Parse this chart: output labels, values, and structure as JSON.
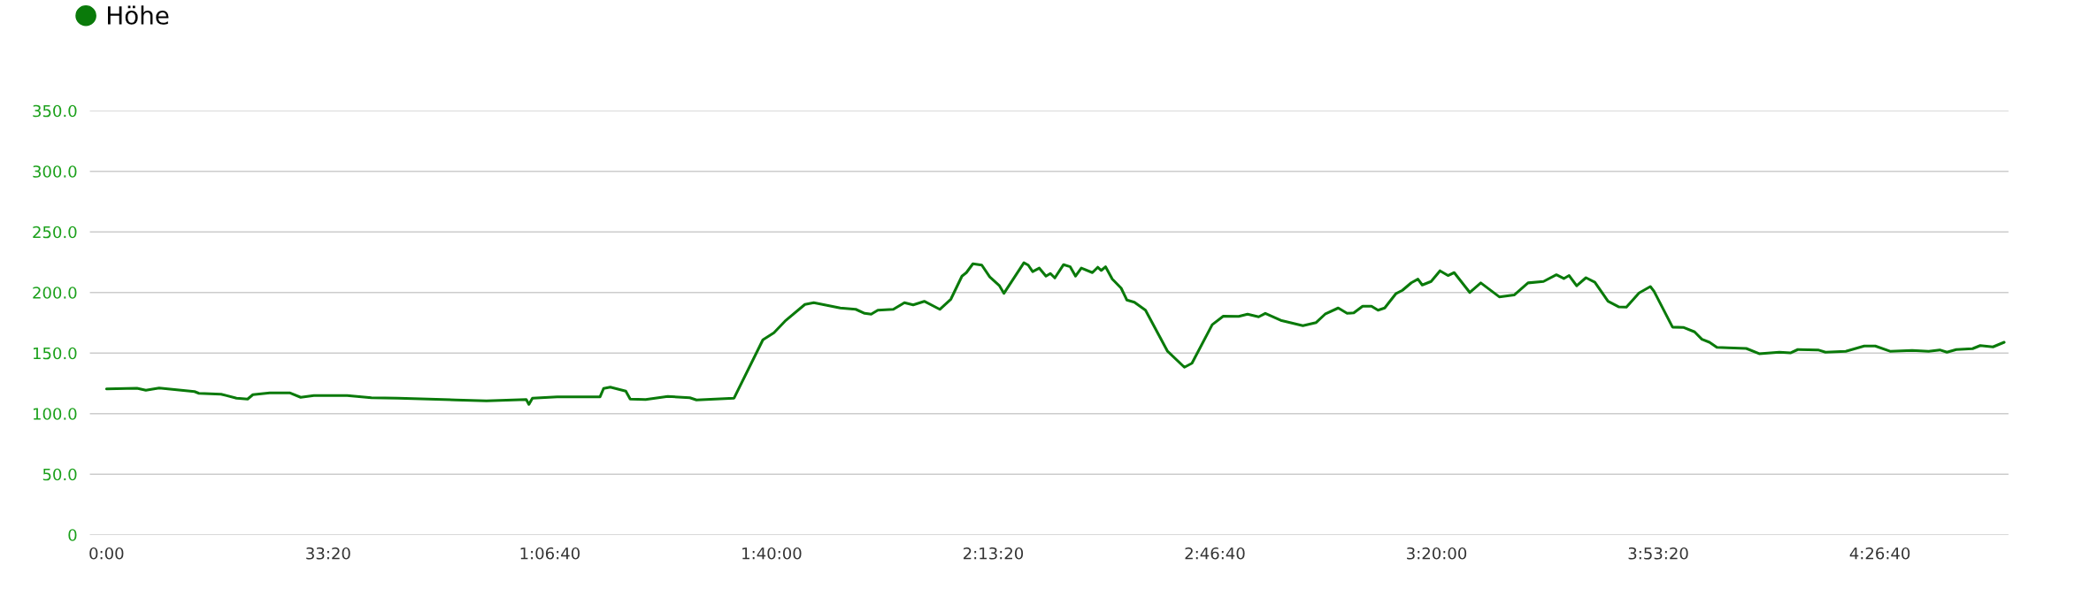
{
  "chart_data": {
    "type": "line",
    "legend": "top left",
    "grid": "y",
    "xlim": [
      -150,
      17160
    ],
    "ylim": [
      0,
      350
    ],
    "xticks": [
      {
        "value": 0,
        "label": "0:00"
      },
      {
        "value": 2000,
        "label": "33:20"
      },
      {
        "value": 4000,
        "label": "1:06:40"
      },
      {
        "value": 6000,
        "label": "1:40:00"
      },
      {
        "value": 8000,
        "label": "2:13:20"
      },
      {
        "value": 10000,
        "label": "2:46:40"
      },
      {
        "value": 12000,
        "label": "3:20:00"
      },
      {
        "value": 14000,
        "label": "3:53:20"
      },
      {
        "value": 16000,
        "label": "4:26:40"
      }
    ],
    "yticks": [
      0,
      {
        "value": 50,
        "label": "50.0"
      },
      {
        "value": 100,
        "label": "100.0"
      },
      {
        "value": 150,
        "label": "150.0"
      },
      {
        "value": 200,
        "label": "200.0"
      },
      {
        "value": 250,
        "label": "250.0"
      },
      {
        "value": 300,
        "label": "300.0"
      },
      {
        "value": 350,
        "label": "350.0"
      }
    ],
    "series": [
      {
        "name": "Höhe",
        "color": "#0a7a0a",
        "x": [
          0,
          275,
          355,
          475,
          794,
          834,
          1033,
          1173,
          1273,
          1321,
          1473,
          1652,
          1752,
          1871,
          2171,
          2390,
          2630,
          3149,
          3428,
          3787,
          3811,
          3843,
          4066,
          4453,
          4485,
          4545,
          4685,
          4725,
          4864,
          5064,
          5263,
          5323,
          5662,
          5922,
          6022,
          6121,
          6301,
          6381,
          6620,
          6760,
          6840,
          6899,
          6959,
          7099,
          7199,
          7278,
          7378,
          7518,
          7618,
          7718,
          7758,
          7817,
          7897,
          7969,
          8057,
          8097,
          8277,
          8316,
          8356,
          8416,
          8476,
          8516,
          8556,
          8635,
          8695,
          8743,
          8795,
          8895,
          8943,
          8975,
          9014,
          9074,
          9154,
          9206,
          9274,
          9374,
          9573,
          9725,
          9793,
          9976,
          10076,
          10215,
          10295,
          10395,
          10455,
          10594,
          10794,
          10914,
          10994,
          11113,
          11193,
          11253,
          11333,
          11413,
          11472,
          11532,
          11632,
          11692,
          11772,
          11832,
          11871,
          11951,
          12031,
          12103,
          12159,
          12300,
          12399,
          12566,
          12700,
          12825,
          12965,
          13081,
          13148,
          13196,
          13264,
          13348,
          13428,
          13547,
          13646,
          13713,
          13827,
          13929,
          13962,
          14129,
          14226,
          14328,
          14394,
          14462,
          14529,
          14626,
          14794,
          14911,
          15093,
          15192,
          15259,
          15442,
          15509,
          15692,
          15858,
          15958,
          16091,
          16291,
          16440,
          16540,
          16605,
          16689,
          16836,
          16905,
          17020,
          17121
        ],
        "values": [
          120.4,
          121,
          119.3,
          121.2,
          118.2,
          116.8,
          116.1,
          112.8,
          112,
          115.7,
          117.2,
          117.2,
          113.5,
          115,
          115,
          113.1,
          112.8,
          111.3,
          110.6,
          111.7,
          107.7,
          112.8,
          113.9,
          113.9,
          120.8,
          121.9,
          118.6,
          112,
          111.7,
          114.2,
          113.1,
          111.3,
          112.8,
          160.9,
          166.8,
          176.3,
          190.1,
          191.6,
          187.2,
          186.1,
          182.8,
          182.1,
          185.4,
          186.1,
          191.6,
          189.8,
          192.7,
          186.1,
          194.5,
          213.5,
          216.4,
          223.7,
          222.6,
          212.8,
          205.5,
          199.3,
          224.5,
          222.6,
          217.2,
          220.1,
          213.5,
          215.7,
          212,
          223,
          221.2,
          213.5,
          220.1,
          216.4,
          220.8,
          218.2,
          221.2,
          211.1,
          203.6,
          193.8,
          192,
          185.4,
          151.5,
          138.3,
          141.6,
          173.4,
          180.4,
          180.3,
          182.1,
          179.9,
          182.8,
          177,
          172.6,
          175.2,
          182.1,
          187.2,
          182.8,
          183.2,
          188.7,
          188.7,
          185.4,
          187.2,
          198.9,
          201.8,
          208,
          211,
          206.2,
          209.1,
          217.9,
          214,
          216.4,
          200,
          207.9,
          196.4,
          197.9,
          207.9,
          209.1,
          214.6,
          211.5,
          214,
          205.5,
          212.2,
          208.5,
          192.7,
          188.1,
          188,
          199.6,
          204.9,
          201,
          171.4,
          171.2,
          167.5,
          161.4,
          158.9,
          154.7,
          154.4,
          153.8,
          149.5,
          150.7,
          150.1,
          152.9,
          152.6,
          150.7,
          151.5,
          155.8,
          155.8,
          151.5,
          152.2,
          151.5,
          152.6,
          150.7,
          152.9,
          153.6,
          156.2,
          155.1,
          158.9
        ]
      }
    ]
  }
}
